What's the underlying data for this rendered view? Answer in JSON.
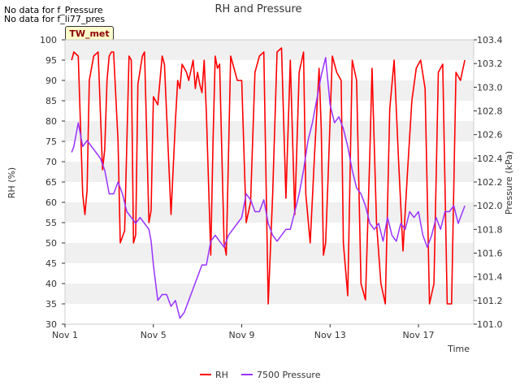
{
  "notes": [
    "No data for f_Pressure",
    "No data for f_li77_pres"
  ],
  "badge": "TW_met",
  "colors": {
    "rh": "#ff0000",
    "pressure": "#9933ff",
    "band": "#f0f0f0",
    "axis": "#333333"
  },
  "chart_data": {
    "type": "line",
    "title": "RH and Pressure",
    "xlabel": "Time",
    "ylabel_left": "RH (%)",
    "ylabel_right": "Pressure (kPa)",
    "xlim": [
      0,
      18.5
    ],
    "ylim_left": [
      30,
      100
    ],
    "ylim_right": [
      101.0,
      103.4
    ],
    "x_ticks": [
      {
        "value": 0,
        "label": "Nov 1"
      },
      {
        "value": 4,
        "label": "Nov 5"
      },
      {
        "value": 8,
        "label": "Nov 9"
      },
      {
        "value": 12,
        "label": "Nov 13"
      },
      {
        "value": 16,
        "label": "Nov 17"
      }
    ],
    "y_ticks_left": [
      30,
      35,
      40,
      45,
      50,
      55,
      60,
      65,
      70,
      75,
      80,
      85,
      90,
      95,
      100
    ],
    "y_ticks_right": [
      "101.0",
      "101.2",
      "101.4",
      "101.6",
      "101.8",
      "102.0",
      "102.2",
      "102.4",
      "102.6",
      "102.8",
      "103.0",
      "103.2",
      "103.4"
    ],
    "grid": "horizontal bands",
    "legend": "bottom-center",
    "series": [
      {
        "name": "RH",
        "axis": "left",
        "x": [
          0.3,
          0.4,
          0.6,
          0.8,
          0.9,
          1.0,
          1.1,
          1.2,
          1.3,
          1.5,
          1.7,
          1.8,
          1.9,
          2.0,
          2.1,
          2.2,
          2.4,
          2.5,
          2.7,
          2.9,
          3.0,
          3.1,
          3.2,
          3.3,
          3.5,
          3.6,
          3.8,
          3.9,
          4.0,
          4.2,
          4.4,
          4.5,
          4.8,
          5.0,
          5.1,
          5.2,
          5.3,
          5.5,
          5.6,
          5.8,
          5.9,
          6.0,
          6.1,
          6.2,
          6.3,
          6.4,
          6.6,
          6.7,
          6.8,
          6.9,
          7.0,
          7.2,
          7.3,
          7.5,
          7.6,
          7.8,
          8.0,
          8.2,
          8.4,
          8.6,
          8.8,
          9.0,
          9.2,
          9.4,
          9.6,
          9.8,
          10.0,
          10.2,
          10.4,
          10.6,
          10.8,
          10.9,
          11.1,
          11.3,
          11.5,
          11.6,
          11.7,
          11.8,
          11.9,
          12.1,
          12.3,
          12.5,
          12.6,
          12.8,
          13.0,
          13.2,
          13.4,
          13.6,
          13.8,
          13.9,
          14.1,
          14.3,
          14.5,
          14.7,
          14.9,
          15.1,
          15.3,
          15.5,
          15.7,
          15.9,
          16.1,
          16.3,
          16.5,
          16.7,
          16.9,
          17.1,
          17.3,
          17.5,
          17.7,
          17.9,
          18.1
        ],
        "y": [
          95,
          97,
          96,
          62,
          57,
          63,
          90,
          93,
          96,
          97,
          68,
          73,
          90,
          96,
          97,
          97,
          75,
          50,
          53,
          96,
          95,
          50,
          52,
          89,
          96,
          97,
          55,
          58,
          86,
          84,
          96,
          94,
          57,
          80,
          90,
          88,
          94,
          92,
          90,
          95,
          88,
          92,
          89,
          87,
          95,
          82,
          47,
          75,
          96,
          93,
          94,
          50,
          47,
          96,
          94,
          90,
          90,
          55,
          60,
          92,
          96,
          97,
          35,
          62,
          97,
          98,
          61,
          95,
          57,
          92,
          97,
          62,
          50,
          72,
          93,
          78,
          47,
          50,
          65,
          96,
          92,
          90,
          50,
          37,
          95,
          90,
          40,
          36,
          72,
          93,
          55,
          40,
          35,
          83,
          95,
          70,
          48,
          67,
          85,
          93,
          95,
          88,
          35,
          40,
          92,
          94,
          35,
          35,
          92,
          90,
          95
        ]
      },
      {
        "name": "7500 Pressure",
        "axis": "right",
        "x": [
          0.3,
          0.4,
          0.6,
          0.8,
          1.0,
          1.2,
          1.4,
          1.6,
          1.8,
          1.9,
          2.0,
          2.2,
          2.4,
          2.6,
          2.8,
          3.0,
          3.2,
          3.4,
          3.6,
          3.8,
          3.9,
          4.0,
          4.1,
          4.2,
          4.4,
          4.6,
          4.8,
          5.0,
          5.2,
          5.4,
          5.6,
          5.8,
          6.0,
          6.2,
          6.4,
          6.6,
          6.8,
          7.0,
          7.2,
          7.4,
          7.6,
          7.8,
          8.0,
          8.2,
          8.4,
          8.6,
          8.8,
          9.0,
          9.2,
          9.4,
          9.6,
          9.8,
          10.0,
          10.2,
          10.4,
          10.6,
          10.8,
          11.0,
          11.2,
          11.4,
          11.6,
          11.8,
          12.0,
          12.2,
          12.4,
          12.6,
          12.8,
          13.0,
          13.2,
          13.4,
          13.6,
          13.8,
          14.0,
          14.2,
          14.4,
          14.6,
          14.8,
          15.0,
          15.2,
          15.4,
          15.6,
          15.8,
          16.0,
          16.2,
          16.4,
          16.6,
          16.8,
          17.0,
          17.2,
          17.4,
          17.6,
          17.8,
          18.0,
          18.1
        ],
        "y": [
          102.45,
          102.5,
          102.7,
          102.5,
          102.55,
          102.5,
          102.45,
          102.4,
          102.3,
          102.2,
          102.1,
          102.1,
          102.2,
          102.1,
          101.95,
          101.9,
          101.85,
          101.9,
          101.85,
          101.8,
          101.7,
          101.5,
          101.35,
          101.2,
          101.25,
          101.25,
          101.15,
          101.2,
          101.05,
          101.1,
          101.2,
          101.3,
          101.4,
          101.5,
          101.5,
          101.7,
          101.75,
          101.7,
          101.65,
          101.75,
          101.8,
          101.85,
          101.9,
          102.1,
          102.05,
          101.95,
          101.95,
          102.05,
          101.85,
          101.75,
          101.7,
          101.75,
          101.8,
          101.8,
          101.95,
          102.1,
          102.3,
          102.55,
          102.7,
          102.9,
          103.1,
          103.25,
          102.85,
          102.7,
          102.75,
          102.65,
          102.5,
          102.3,
          102.15,
          102.1,
          102.0,
          101.85,
          101.8,
          101.85,
          101.7,
          101.9,
          101.75,
          101.7,
          101.85,
          101.8,
          101.95,
          101.9,
          101.95,
          101.75,
          101.65,
          101.75,
          101.9,
          101.8,
          101.95,
          101.95,
          102.0,
          101.85,
          101.95,
          102.0
        ]
      }
    ]
  }
}
